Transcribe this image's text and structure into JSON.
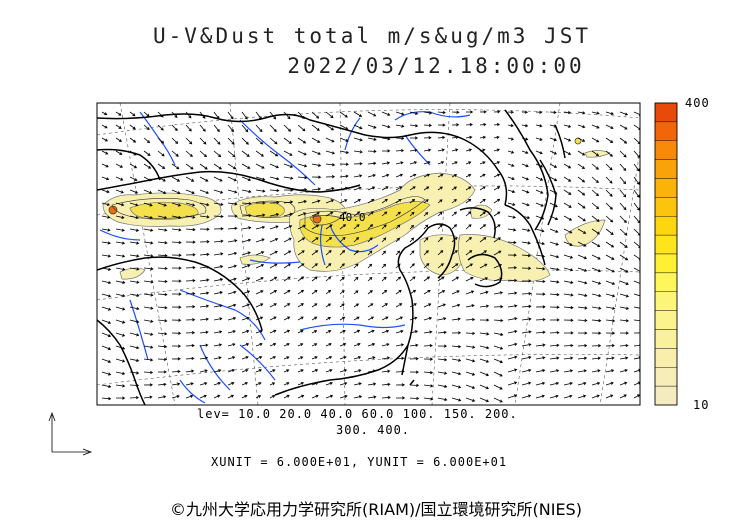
{
  "title_line1": "U-V&Dust total m/s&ug/m3 JST",
  "title_line2": "2022/03/12.18:00:00",
  "contour_label": "40.0",
  "levels_line1": "lev= 10.0 20.0 40.0 60.0 100. 150. 200.",
  "levels_line2": "300. 400.",
  "units_line": "XUNIT = 6.000E+01, YUNIT = 6.000E+01",
  "colorbar": {
    "max_label": "400",
    "min_label": "10",
    "colors": [
      "#e84a0a",
      "#f26508",
      "#f78a08",
      "#faa20a",
      "#fbb30a",
      "#fcc50d",
      "#fdd612",
      "#fee41c",
      "#fef033",
      "#fef65a",
      "#fdf577",
      "#fcf38c",
      "#faf19e",
      "#f8efad",
      "#f6edb8",
      "#f4ebc0"
    ]
  },
  "credit": "©九州大学応用力学研究所(RIAM)/国立環境研究所(NIES)",
  "colors": {
    "coast": "#000000",
    "river": "#1f4fff",
    "dust_light": "#f8f0b0",
    "dust_mid": "#f3e04a",
    "dust_high": "#e8701a"
  }
}
